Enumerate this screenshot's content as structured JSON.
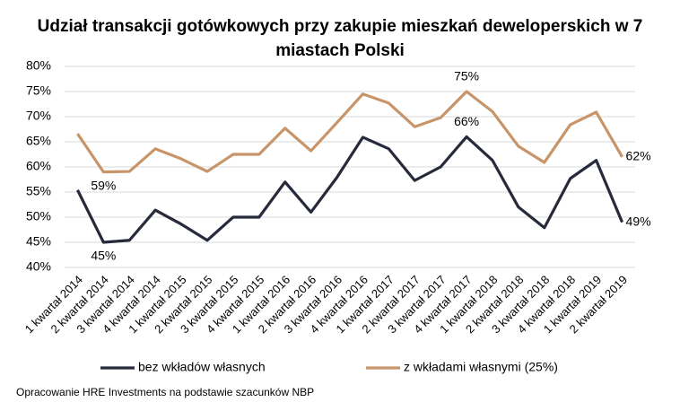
{
  "chart_data": {
    "type": "line",
    "title": [
      "Udział transakcji gotówkowych przy zakupie mieszkań deweloperskich w 7",
      "miastach Polski"
    ],
    "categories": [
      "1 kwartał 2014",
      "2 kwartał 2014",
      "3 kwartał 2014",
      "4 kwartał 2014",
      "1 kwartał 2015",
      "2 kwartał 2015",
      "3 kwartał 2015",
      "4 kwartał 2015",
      "1 kwartał 2016",
      "2 kwartał 2016",
      "3 kwartał 2016",
      "4 kwartał 2016",
      "1 kwartał 2017",
      "2 kwartał 2017",
      "3 kwartał 2017",
      "4 kwartał 2017",
      "1 kwartał 2018",
      "2 kwartał 2018",
      "3 kwartał 2018",
      "4 kwartał 2018",
      "1 kwartał 2019",
      "2 kwartał 2019"
    ],
    "series": [
      {
        "name": "bez wkładów własnych",
        "color": "#262a3b",
        "values": [
          55.4,
          45,
          45.4,
          51.4,
          48.6,
          45.4,
          50,
          50,
          57,
          51,
          57.9,
          65.9,
          63.6,
          57.3,
          60,
          66,
          61.3,
          52,
          47.9,
          57.7,
          61.3,
          49
        ],
        "value_labels": [
          null,
          "45%",
          null,
          null,
          null,
          null,
          null,
          null,
          null,
          null,
          null,
          null,
          null,
          null,
          null,
          "66%",
          null,
          null,
          null,
          null,
          null,
          "49%"
        ]
      },
      {
        "name": "z wkładami własnymi (25%)",
        "color": "#c8956a",
        "values": [
          66.6,
          59,
          59.1,
          63.6,
          61.6,
          59.1,
          62.5,
          62.5,
          67.7,
          63.2,
          68.8,
          74.5,
          72.7,
          68,
          69.8,
          75,
          71,
          64.1,
          60.9,
          68.4,
          70.9,
          62
        ],
        "value_labels": [
          null,
          "59%",
          null,
          null,
          null,
          null,
          null,
          null,
          null,
          null,
          null,
          null,
          null,
          null,
          null,
          "75%",
          null,
          null,
          null,
          null,
          null,
          "62%"
        ]
      }
    ],
    "ylim": [
      40,
      80
    ],
    "yticks": [
      {
        "value": 40,
        "label": "40%"
      },
      {
        "value": 45,
        "label": "45%"
      },
      {
        "value": 50,
        "label": "50%"
      },
      {
        "value": 55,
        "label": "55%"
      },
      {
        "value": 60,
        "label": "60%"
      },
      {
        "value": 65,
        "label": "65%"
      },
      {
        "value": 70,
        "label": "70%"
      },
      {
        "value": 75,
        "label": "75%"
      },
      {
        "value": 80,
        "label": "80%"
      }
    ],
    "grid": true,
    "legend": "bottom",
    "source": "Opracowanie HRE Investments na podstawie szacunków NBP"
  }
}
